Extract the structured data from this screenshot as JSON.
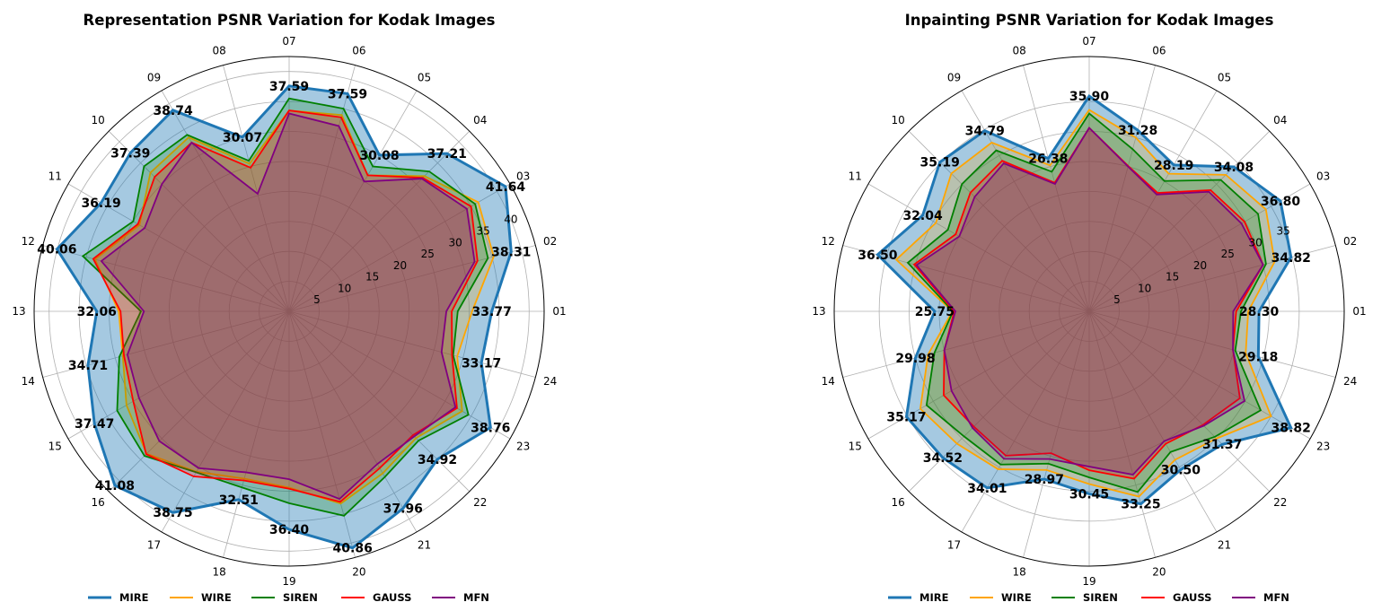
{
  "chart_data": [
    {
      "type": "radar",
      "title": "Representation PSNR Variation for Kodak Images",
      "categories": [
        "01",
        "02",
        "03",
        "04",
        "05",
        "06",
        "07",
        "08",
        "09",
        "10",
        "11",
        "12",
        "13",
        "14",
        "15",
        "16",
        "17",
        "18",
        "19",
        "20",
        "21",
        "22",
        "23",
        "24"
      ],
      "radial_ticks": [
        "5",
        "10",
        "15",
        "20",
        "25",
        "30",
        "35",
        "40"
      ],
      "rlim": [
        0,
        42.5
      ],
      "grid": true,
      "legend_position": "bottom",
      "series": [
        {
          "name": "MIRE",
          "color": "#1f77b4",
          "values": [
            33.77,
            38.31,
            41.64,
            37.21,
            30.08,
            37.59,
            37.59,
            30.07,
            38.74,
            37.39,
            36.19,
            40.06,
            32.06,
            34.71,
            37.47,
            41.08,
            38.75,
            32.51,
            36.4,
            40.86,
            37.96,
            34.92,
            38.76,
            33.17
          ],
          "labels": [
            "33.77",
            "38.31",
            "41.64",
            "37.21",
            "30.08",
            "37.59",
            "37.59",
            "30.07",
            "38.74",
            "37.39",
            "36.19",
            "40.06",
            "32.06",
            "34.71",
            "37.47",
            "41.08",
            "38.75",
            "32.51",
            "36.40",
            "40.86",
            "37.96",
            "34.92",
            "38.76",
            "33.17"
          ]
        },
        {
          "name": "WIRE",
          "color": "#ffa500",
          "values": [
            30.5,
            35.3,
            36.4,
            31.9,
            26.2,
            33.9,
            33.5,
            25.5,
            33.5,
            32.7,
            28.8,
            33.5,
            28.4,
            28.7,
            31.3,
            33.6,
            30.9,
            28.9,
            29.4,
            33.2,
            31.2,
            29.9,
            33.3,
            29.0
          ]
        },
        {
          "name": "SIREN",
          "color": "#008000",
          "values": [
            28.1,
            34.3,
            35.8,
            33.0,
            27.9,
            35.0,
            35.5,
            26.0,
            34.0,
            34.2,
            30.0,
            35.6,
            24.7,
            29.3,
            33.1,
            34.1,
            31.0,
            30.4,
            32.0,
            35.3,
            31.9,
            30.5,
            34.5,
            28.3
          ]
        },
        {
          "name": "GAUSS",
          "color": "#ff0000",
          "values": [
            27.1,
            32.5,
            35.0,
            31.5,
            26.2,
            33.5,
            33.5,
            24.8,
            32.5,
            31.7,
            29.1,
            33.8,
            28.1,
            28.5,
            30.0,
            33.7,
            31.8,
            29.2,
            29.6,
            32.9,
            30.2,
            29.2,
            32.3,
            28.1
          ]
        },
        {
          "name": "MFN",
          "color": "#800080",
          "values": [
            26.2,
            32.0,
            34.2,
            31.3,
            25.0,
            32.0,
            33.0,
            20.3,
            32.5,
            30.0,
            27.8,
            32.4,
            24.2,
            27.9,
            28.9,
            30.6,
            30.2,
            27.8,
            28.0,
            32.4,
            29.4,
            29.5,
            32.0,
            26.3
          ]
        }
      ]
    },
    {
      "type": "radar",
      "title": "Inpainting PSNR Variation for Kodak Images",
      "categories": [
        "01",
        "02",
        "03",
        "04",
        "05",
        "06",
        "07",
        "08",
        "09",
        "10",
        "11",
        "12",
        "13",
        "14",
        "15",
        "16",
        "17",
        "18",
        "19",
        "20",
        "21",
        "22",
        "23",
        "24"
      ],
      "radial_ticks": [
        "5",
        "10",
        "15",
        "20",
        "25",
        "30",
        "35"
      ],
      "rlim": [
        0,
        42.5
      ],
      "grid": true,
      "legend_position": "bottom",
      "series": [
        {
          "name": "MIRE",
          "color": "#1f77b4",
          "values": [
            28.3,
            34.82,
            36.8,
            34.08,
            28.19,
            31.28,
            35.9,
            26.38,
            34.79,
            35.19,
            32.04,
            36.5,
            25.75,
            29.98,
            35.17,
            34.52,
            34.01,
            28.97,
            30.45,
            33.25,
            30.5,
            31.37,
            38.82,
            29.18
          ],
          "labels": [
            "28.30",
            "34.82",
            "36.80",
            "34.08",
            "28.19",
            "31.28",
            "35.90",
            "26.38",
            "34.79",
            "35.19",
            "32.04",
            "36.50",
            "25.75",
            "29.98",
            "35.17",
            "34.52",
            "34.01",
            "28.97",
            "30.45",
            "33.25",
            "30.50",
            "31.37",
            "38.82",
            "29.18"
          ]
        },
        {
          "name": "WIRE",
          "color": "#ffa500",
          "values": [
            26.5,
            32.0,
            34.0,
            32.2,
            26.5,
            30.0,
            33.6,
            25.2,
            32.5,
            32.5,
            29.5,
            33.3,
            22.8,
            27.8,
            32.5,
            31.2,
            30.4,
            27.4,
            28.8,
            32.0,
            28.6,
            30.0,
            35.0,
            27.0
          ]
        },
        {
          "name": "SIREN",
          "color": "#008000",
          "values": [
            25.3,
            30.5,
            32.5,
            31.0,
            25.1,
            28.0,
            33.0,
            24.1,
            31.0,
            30.0,
            27.2,
            31.3,
            22.7,
            26.7,
            31.3,
            29.5,
            29.5,
            26.3,
            27.7,
            31.2,
            27.1,
            29.6,
            33.0,
            25.2
          ]
        },
        {
          "name": "GAUSS",
          "color": "#ff0000",
          "values": [
            24.5,
            30.0,
            29.9,
            28.6,
            22.8,
            25.1,
            30.6,
            22.2,
            29.0,
            28.0,
            25.7,
            30.2,
            22.5,
            25.0,
            28.0,
            27.2,
            27.8,
            24.5,
            26.5,
            28.9,
            25.5,
            26.8,
            29.0,
            24.8
          ]
        },
        {
          "name": "MFN",
          "color": "#800080",
          "values": [
            24.0,
            30.0,
            29.3,
            28.2,
            22.5,
            25.0,
            30.6,
            22.0,
            28.5,
            27.0,
            25.0,
            29.8,
            22.3,
            25.0,
            26.5,
            27.5,
            28.4,
            25.5,
            25.9,
            28.2,
            25.0,
            27.0,
            29.9,
            24.8
          ]
        }
      ]
    }
  ]
}
